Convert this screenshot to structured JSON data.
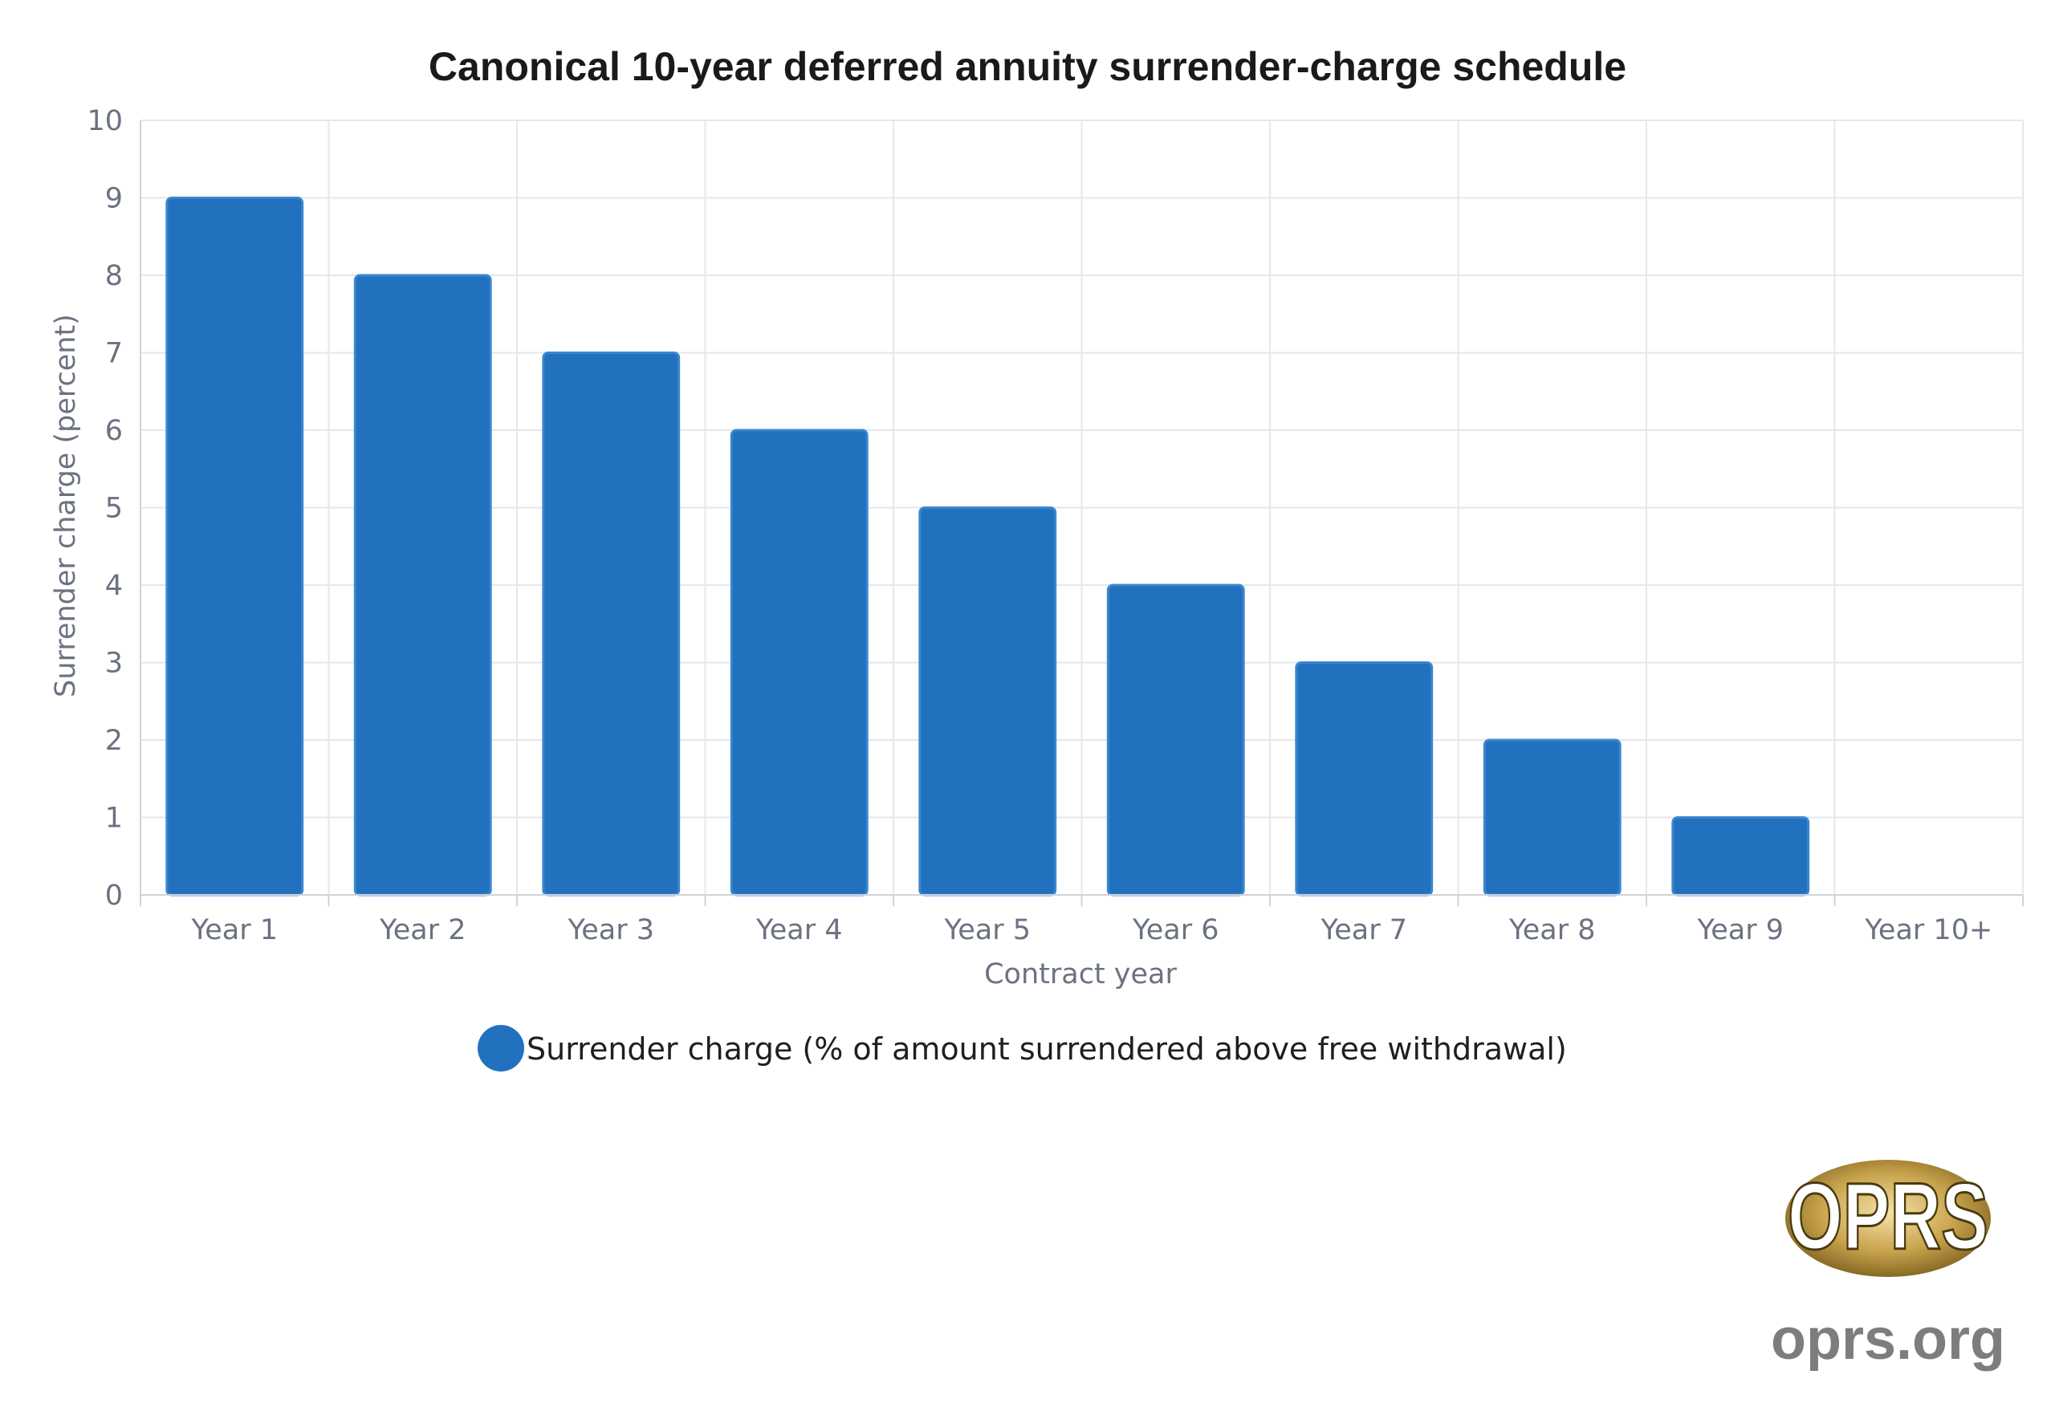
{
  "chart_data": {
    "type": "bar",
    "title": "Canonical 10-year deferred annuity surrender-charge schedule",
    "xlabel": "Contract year",
    "ylabel": "Surrender charge (percent)",
    "categories": [
      "Year 1",
      "Year 2",
      "Year 3",
      "Year 4",
      "Year 5",
      "Year 6",
      "Year 7",
      "Year 8",
      "Year 9",
      "Year 10+"
    ],
    "series": [
      {
        "name": "Surrender charge (% of amount surrendered above free withdrawal)",
        "values": [
          9,
          8,
          7,
          6,
          5,
          4,
          3,
          2,
          1,
          0
        ],
        "color": "#2171be"
      }
    ],
    "ylim": [
      0,
      10
    ],
    "yticks": [
      "0",
      "1",
      "2",
      "3",
      "4",
      "5",
      "6",
      "7",
      "8",
      "9",
      "10"
    ],
    "grid": true,
    "legend_position": "bottom"
  },
  "branding": {
    "logo_text": "OPRS",
    "site_text": "oprs.org"
  }
}
